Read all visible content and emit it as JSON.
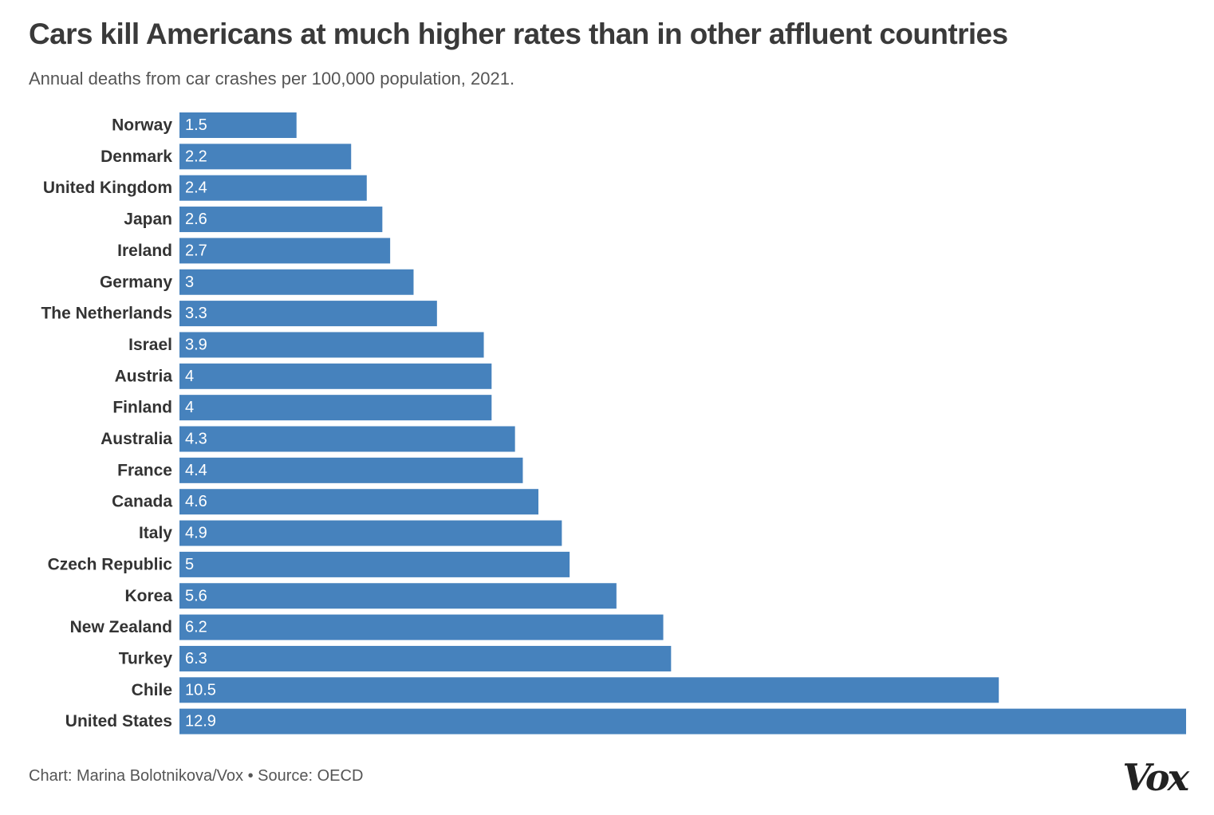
{
  "title": "Cars kill Americans at much higher rates than in other affluent countries",
  "subtitle": "Annual deaths from car crashes per 100,000 population, 2021.",
  "footer": "Chart: Marina Bolotnikova/Vox • Source: OECD",
  "logo": "Vox",
  "colors": {
    "bar": "#4682bd",
    "bar_label": "#ffffff",
    "category_label": "#333333"
  },
  "chart_data": {
    "type": "bar",
    "orientation": "horizontal",
    "title": "Cars kill Americans at much higher rates than in other affluent countries",
    "subtitle": "Annual deaths from car crashes per 100,000 population, 2021.",
    "xlabel": "",
    "ylabel": "",
    "grid": false,
    "legend": "none",
    "xlim": [
      0,
      12.9
    ],
    "categories": [
      "Norway",
      "Denmark",
      "United Kingdom",
      "Japan",
      "Ireland",
      "Germany",
      "The Netherlands",
      "Israel",
      "Austria",
      "Finland",
      "Australia",
      "France",
      "Canada",
      "Italy",
      "Czech Republic",
      "Korea",
      "New Zealand",
      "Turkey",
      "Chile",
      "United States"
    ],
    "values": [
      1.5,
      2.2,
      2.4,
      2.6,
      2.7,
      3,
      3.3,
      3.9,
      4,
      4,
      4.3,
      4.4,
      4.6,
      4.9,
      5,
      5.6,
      6.2,
      6.3,
      10.5,
      12.9
    ]
  }
}
